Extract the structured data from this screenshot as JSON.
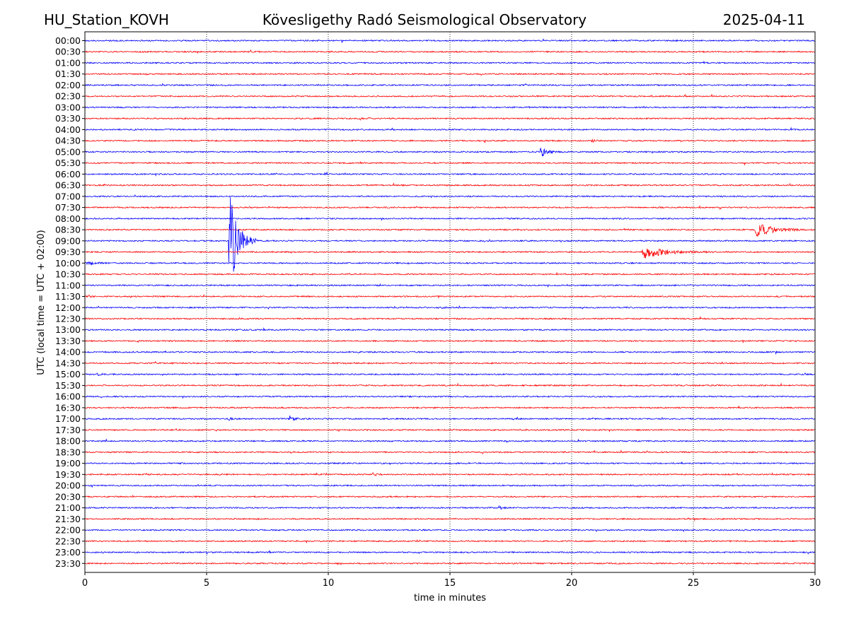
{
  "header": {
    "station": "HU_Station_KOVH",
    "observatory": "Kövesligethy Radó Seismological Observatory",
    "date": "2025-04-11"
  },
  "chart_data": {
    "type": "line",
    "title": "Kövesligethy Radó Seismological Observatory",
    "xlabel": "time in minutes",
    "ylabel": "UTC (local time = UTC + 02:00)",
    "xlim": [
      0,
      30
    ],
    "xticks": [
      0,
      5,
      10,
      15,
      20,
      25,
      30
    ],
    "grid": "vertical dotted at x ticks",
    "trace_colors": [
      "#0000ff",
      "#ff0000"
    ],
    "row_labels": [
      "00:00",
      "00:30",
      "01:00",
      "01:30",
      "02:00",
      "02:30",
      "03:00",
      "03:30",
      "04:00",
      "04:30",
      "05:00",
      "05:30",
      "06:00",
      "06:30",
      "07:00",
      "07:30",
      "08:00",
      "08:30",
      "09:00",
      "09:30",
      "10:00",
      "10:30",
      "11:00",
      "11:30",
      "12:00",
      "12:30",
      "13:00",
      "13:30",
      "14:00",
      "14:30",
      "15:00",
      "15:30",
      "16:00",
      "16:30",
      "17:00",
      "17:30",
      "18:00",
      "18:30",
      "19:00",
      "19:30",
      "20:00",
      "20:30",
      "21:00",
      "21:30",
      "22:00",
      "22:30",
      "23:00",
      "23:30"
    ],
    "events": [
      {
        "row": "09:00",
        "start_min": 5.9,
        "duration_min": 1.2,
        "amplitude": 90,
        "note": "large local event, clipped"
      },
      {
        "row": "05:00",
        "start_min": 18.7,
        "duration_min": 1.0,
        "amplitude": 9
      },
      {
        "row": "08:30",
        "start_min": 27.5,
        "duration_min": 2.5,
        "amplitude": 11
      },
      {
        "row": "09:30",
        "start_min": 22.9,
        "duration_min": 3.0,
        "amplitude": 10
      },
      {
        "row": "10:00",
        "start_min": 0.0,
        "duration_min": 1.0,
        "amplitude": 4
      },
      {
        "row": "17:00",
        "start_min": 8.4,
        "duration_min": 0.6,
        "amplitude": 5
      },
      {
        "row": "17:00",
        "start_min": 5.9,
        "duration_min": 0.4,
        "amplitude": 3
      },
      {
        "row": "04:30",
        "start_min": 20.8,
        "duration_min": 0.4,
        "amplitude": 3
      },
      {
        "row": "12:00",
        "start_min": 14.5,
        "duration_min": 0.5,
        "amplitude": 2.5
      },
      {
        "row": "21:00",
        "start_min": 17.0,
        "duration_min": 0.5,
        "amplitude": 2.5
      },
      {
        "row": "15:00",
        "start_min": 0.5,
        "duration_min": 0.4,
        "amplitude": 2.5
      },
      {
        "row": "19:30",
        "start_min": 11.8,
        "duration_min": 0.7,
        "amplitude": 2.5
      },
      {
        "row": "11:30",
        "start_min": 0.1,
        "duration_min": 0.3,
        "amplitude": 3
      }
    ]
  }
}
